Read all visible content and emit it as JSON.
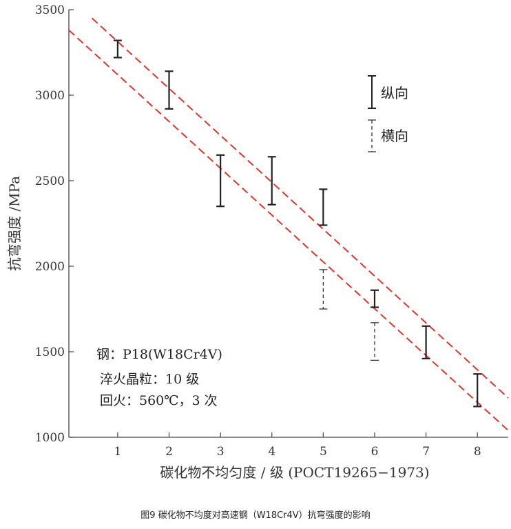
{
  "chart_data": {
    "type": "scatter",
    "xlabel": "碳化物不均匀度 / 级 (POCT19265−1973)",
    "ylabel": "抗弯强度 /MPa",
    "xlim": [
      0.05,
      8.6
    ],
    "ylim": [
      1000,
      3500
    ],
    "xticks": [
      "1",
      "2",
      "3",
      "4",
      "5",
      "6",
      "7",
      "8"
    ],
    "yticks": [
      "1000",
      "1500",
      "2000",
      "2500",
      "3000",
      "3500"
    ],
    "series": [
      {
        "name": "纵向",
        "style": "solid",
        "color": "#222222",
        "points": [
          {
            "x": 1,
            "low": 3220,
            "high": 3320
          },
          {
            "x": 2,
            "low": 2920,
            "high": 3140
          },
          {
            "x": 3,
            "low": 2350,
            "high": 2650
          },
          {
            "x": 4,
            "low": 2360,
            "high": 2640
          },
          {
            "x": 5,
            "low": 2240,
            "high": 2450
          },
          {
            "x": 6,
            "low": 1760,
            "high": 1860
          },
          {
            "x": 7,
            "low": 1460,
            "high": 1650
          },
          {
            "x": 8,
            "low": 1180,
            "high": 1370
          }
        ]
      },
      {
        "name": "横向",
        "style": "dashed",
        "color": "#333333",
        "points": [
          {
            "x": 5,
            "low": 1750,
            "high": 1980
          },
          {
            "x": 6,
            "low": 1450,
            "high": 1670
          }
        ]
      }
    ],
    "bands": [
      {
        "color": "#e0342a",
        "x": [
          0.5,
          8.6
        ],
        "y": [
          3450,
          1230
        ]
      },
      {
        "color": "#e0342a",
        "x": [
          0.05,
          8.6
        ],
        "y": [
          3380,
          1040
        ]
      }
    ],
    "annotations": [
      "钢：P18(W18Cr4V)",
      "淬火晶粒：10 级",
      "回火：560℃，3 次"
    ],
    "legend_placement": "top-right",
    "grid": false
  },
  "caption": "图9  碳化物不均度对高速钢（W18Cr4V）抗弯强度的影响"
}
